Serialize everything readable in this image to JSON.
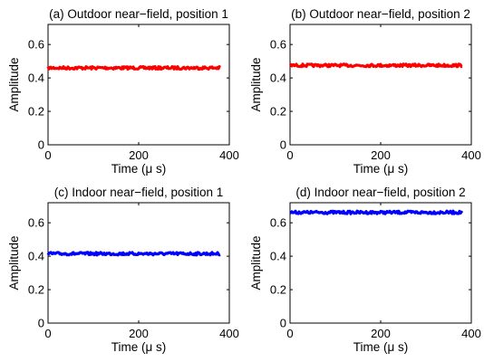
{
  "chart_data": [
    {
      "type": "line",
      "title": "(a) Outdoor near−field, position 1",
      "xlabel": "Time (μ s)",
      "ylabel": "Amplitude",
      "xlim": [
        0,
        400
      ],
      "ylim": [
        0,
        0.72
      ],
      "xticks": [
        0,
        200,
        400
      ],
      "yticks": [
        0,
        0.2,
        0.4,
        0.6
      ],
      "xtick_labels": [
        "0",
        "200",
        "400"
      ],
      "ytick_labels": [
        "0",
        "0.2",
        "0.4",
        "0.6"
      ],
      "series": [
        {
          "color": "#ff0000",
          "x": [
            0,
            380
          ],
          "y": [
            0.46,
            0.46
          ]
        }
      ]
    },
    {
      "type": "line",
      "title": "(b) Outdoor near−field, position 2",
      "xlabel": "Time (μ s)",
      "ylabel": "Amplitude",
      "xlim": [
        0,
        400
      ],
      "ylim": [
        0,
        0.72
      ],
      "xticks": [
        0,
        200,
        400
      ],
      "yticks": [
        0,
        0.2,
        0.4,
        0.6
      ],
      "xtick_labels": [
        "0",
        "200",
        "400"
      ],
      "ytick_labels": [
        "0",
        "0.2",
        "0.4",
        "0.6"
      ],
      "series": [
        {
          "color": "#ff0000",
          "x": [
            0,
            380
          ],
          "y": [
            0.475,
            0.475
          ]
        }
      ]
    },
    {
      "type": "line",
      "title": "(c) Indoor near−field, position 1",
      "xlabel": "Time (μ s)",
      "ylabel": "Amplitude",
      "xlim": [
        0,
        400
      ],
      "ylim": [
        0,
        0.72
      ],
      "xticks": [
        0,
        200,
        400
      ],
      "yticks": [
        0,
        0.2,
        0.4,
        0.6
      ],
      "xtick_labels": [
        "0",
        "200",
        "400"
      ],
      "ytick_labels": [
        "0",
        "0.2",
        "0.4",
        "0.6"
      ],
      "series": [
        {
          "color": "#0000ff",
          "x": [
            0,
            380
          ],
          "y": [
            0.415,
            0.415
          ]
        }
      ]
    },
    {
      "type": "line",
      "title": "(d) Indoor near−field, position 2",
      "xlabel": "Time (μ s)",
      "ylabel": "Amplitude",
      "xlim": [
        0,
        400
      ],
      "ylim": [
        0,
        0.72
      ],
      "xticks": [
        0,
        200,
        400
      ],
      "yticks": [
        0,
        0.2,
        0.4,
        0.6
      ],
      "xtick_labels": [
        "0",
        "200",
        "400"
      ],
      "ytick_labels": [
        "0",
        "0.2",
        "0.4",
        "0.6"
      ],
      "series": [
        {
          "color": "#0000ff",
          "x": [
            0,
            380
          ],
          "y": [
            0.662,
            0.662
          ]
        }
      ]
    }
  ]
}
